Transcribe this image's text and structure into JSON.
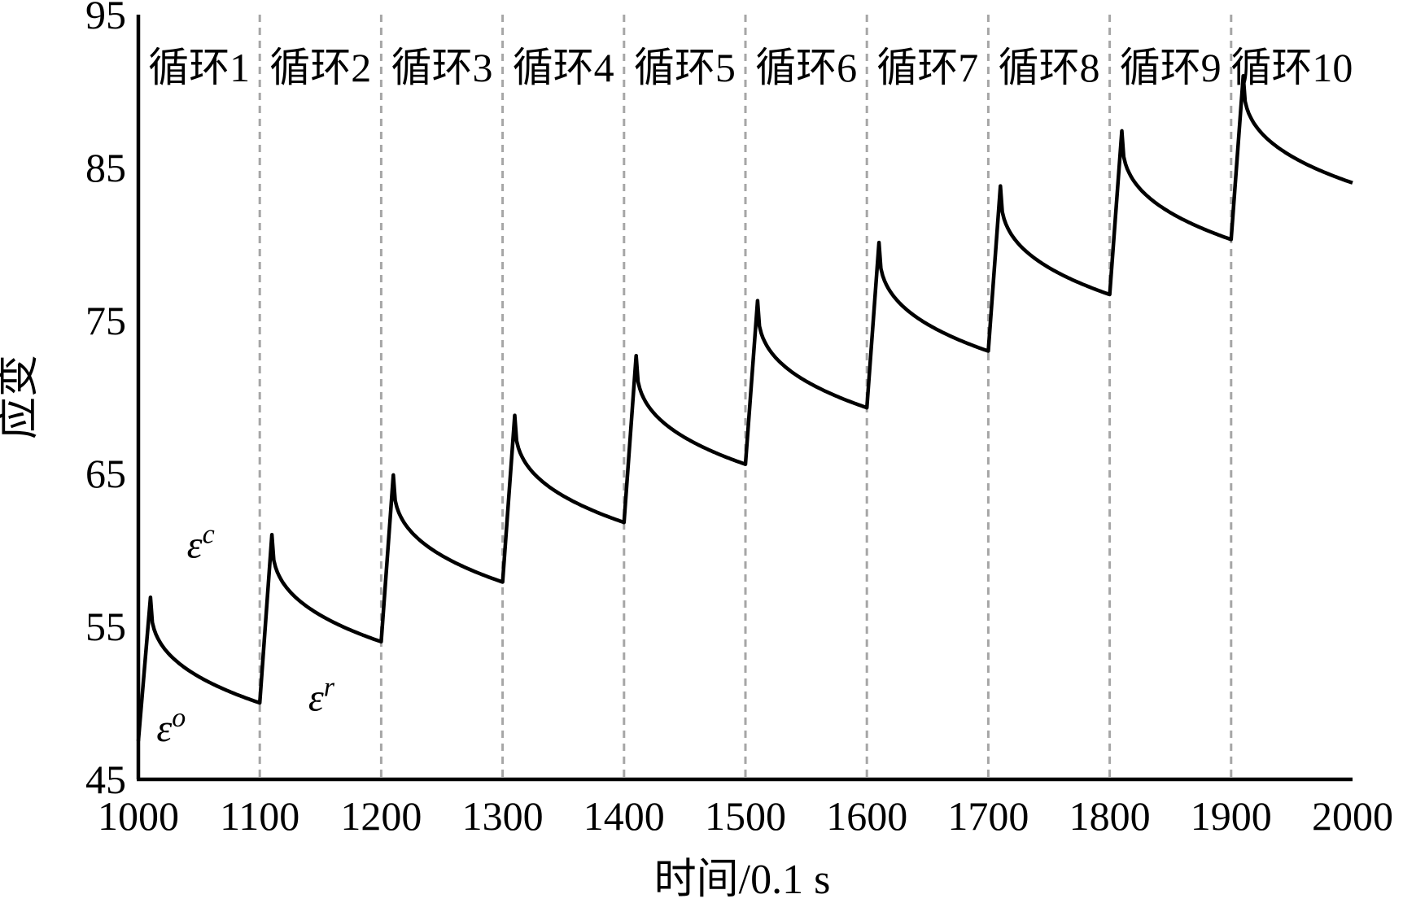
{
  "chart_data": {
    "type": "line",
    "title": "",
    "xlabel": "时间/0.1 s",
    "ylabel": "应变",
    "xlim": [
      1000,
      2000
    ],
    "ylim": [
      45,
      95
    ],
    "x_ticks": [
      "1000",
      "1100",
      "1200",
      "1300",
      "1400",
      "1500",
      "1600",
      "1700",
      "1800",
      "1900",
      "2000"
    ],
    "y_ticks": [
      "45",
      "55",
      "65",
      "75",
      "85",
      "95"
    ],
    "grid": "vertical dashed lines at each cycle boundary",
    "legend": "none",
    "line_color": "#000000",
    "divider_color": "#a6a6a6",
    "cycle_labels": [
      "循环1",
      "循环2",
      "循环3",
      "循环4",
      "循环5",
      "循环6",
      "循环7",
      "循环8",
      "循环9",
      "循环10"
    ],
    "annotations": [
      {
        "base": "ε",
        "sup": "c",
        "x": 1040,
        "y": 59.5
      },
      {
        "base": "ε",
        "sup": "r",
        "x": 1140,
        "y": 49.5
      },
      {
        "base": "ε",
        "sup": "o",
        "x": 1015,
        "y": 47.5
      }
    ],
    "series": [
      {
        "cycles": [
          {
            "start": 1000,
            "base": 47.5,
            "peak": 56.9,
            "end": 50.0
          },
          {
            "start": 1100,
            "base": 50.0,
            "peak": 61.0,
            "end": 54.0
          },
          {
            "start": 1200,
            "base": 54.0,
            "peak": 64.9,
            "end": 57.9
          },
          {
            "start": 1300,
            "base": 57.9,
            "peak": 68.8,
            "end": 61.8
          },
          {
            "start": 1400,
            "base": 61.8,
            "peak": 72.7,
            "end": 65.6
          },
          {
            "start": 1500,
            "base": 65.6,
            "peak": 76.3,
            "end": 69.3
          },
          {
            "start": 1600,
            "base": 69.3,
            "peak": 80.1,
            "end": 73.0
          },
          {
            "start": 1700,
            "base": 73.0,
            "peak": 83.8,
            "end": 76.7
          },
          {
            "start": 1800,
            "base": 76.7,
            "peak": 87.4,
            "end": 80.3
          },
          {
            "start": 1900,
            "base": 80.3,
            "peak": 91.0,
            "end": 84.0
          }
        ],
        "ramp_duration": 10
      }
    ]
  }
}
